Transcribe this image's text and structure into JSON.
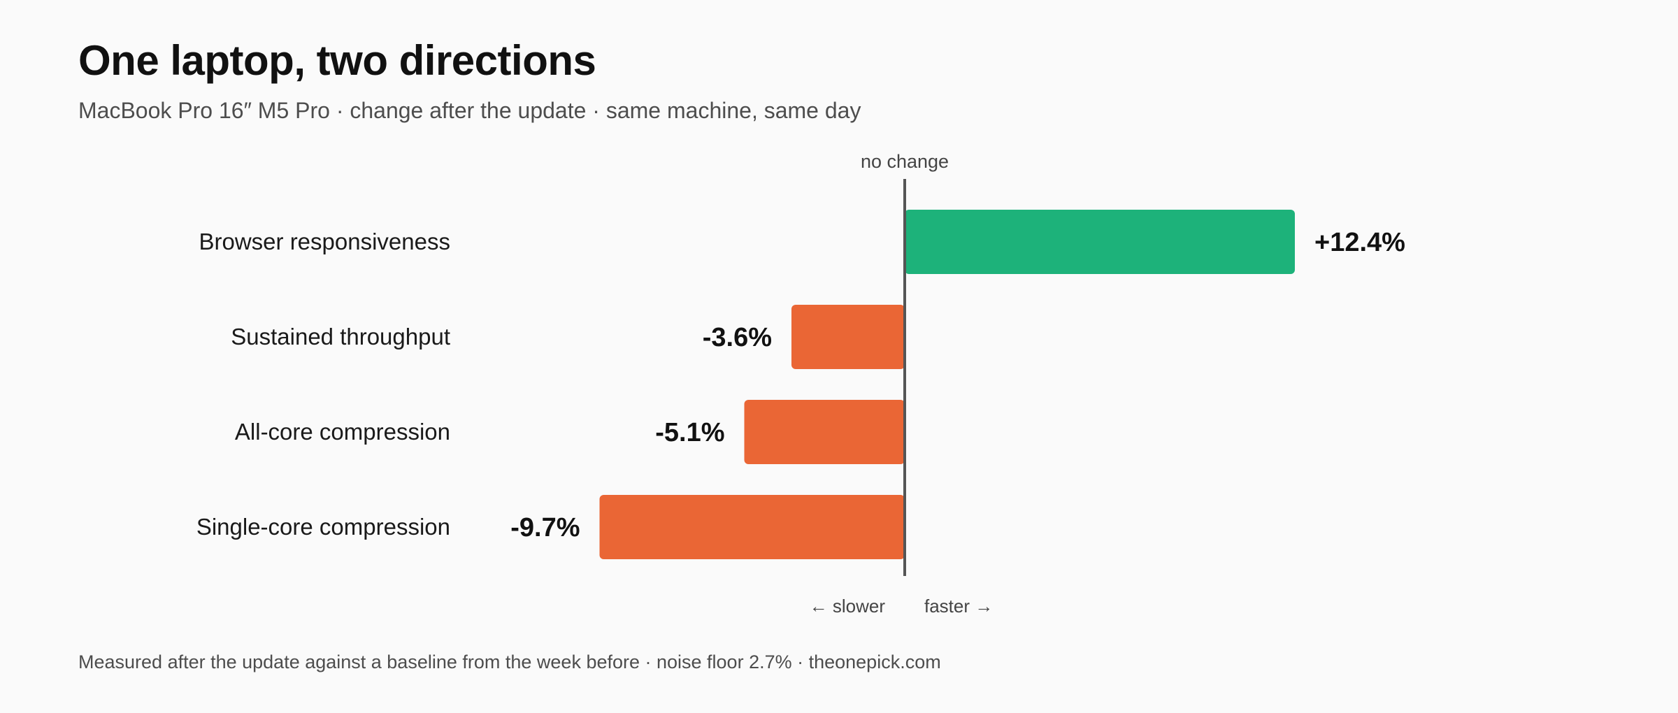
{
  "title": "One laptop, two directions",
  "subtitle": "MacBook Pro 16″ M5 Pro · change after the update · same machine, same day",
  "footer": "Measured after the update against a baseline from the week before · noise floor 2.7% · theonepick.com",
  "chart_data": {
    "type": "bar",
    "orientation": "horizontal",
    "title": "One laptop, two directions",
    "subtitle": "MacBook Pro 16″ M5 Pro · change after the update · same machine, same day",
    "categories": [
      "Browser responsiveness",
      "Sustained throughput",
      "All-core compression",
      "Single-core compression"
    ],
    "values": [
      12.4,
      -3.6,
      -5.1,
      -9.7
    ],
    "value_labels": [
      "+12.4%",
      "-3.6%",
      "-5.1%",
      "-9.7%"
    ],
    "unit": "%",
    "reference_line": {
      "value": 0,
      "label": "no change"
    },
    "direction_labels": {
      "negative": "← slower",
      "positive": "faster →"
    },
    "colors": {
      "positive": "#1db27a",
      "negative": "#ea6635",
      "reference": "#555555"
    },
    "xlim": [
      -14.1,
      13.8
    ],
    "grid": false,
    "legend": "none"
  }
}
